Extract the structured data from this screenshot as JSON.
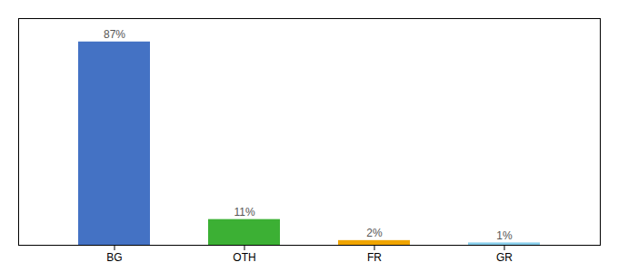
{
  "chart_data": {
    "type": "bar",
    "categories": [
      "BG",
      "OTH",
      "FR",
      "GR"
    ],
    "values": [
      87,
      11,
      2,
      1
    ],
    "value_labels": [
      "87%",
      "11%",
      "2%",
      "1%"
    ],
    "colors": [
      "#4472c4",
      "#3cb034",
      "#f0a500",
      "#87ceeb"
    ],
    "ylim": [
      0,
      97
    ],
    "data_labels": true,
    "tick_labels": "x"
  }
}
